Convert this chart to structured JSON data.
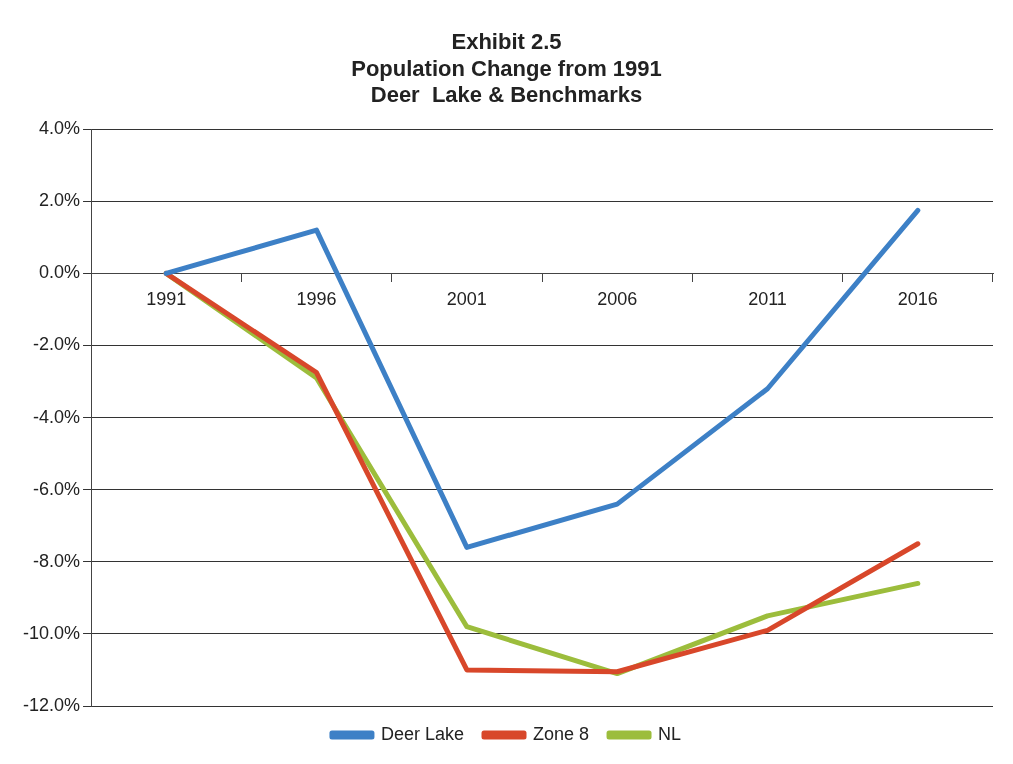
{
  "chart_data": {
    "type": "line",
    "title": "Exhibit 2.5\nPopulation Change from 1991\nDeer  Lake & Benchmarks",
    "categories": [
      "1991",
      "1996",
      "2001",
      "2006",
      "2011",
      "2016"
    ],
    "series": [
      {
        "name": "Deer Lake",
        "color": "#3d80c6",
        "values": [
          0,
          1.2,
          -7.6,
          -6.4,
          -3.2,
          1.75
        ]
      },
      {
        "name": "Zone 8",
        "color": "#d8472a",
        "values": [
          0,
          -2.75,
          -11.0,
          -11.05,
          -9.9,
          -7.5
        ]
      },
      {
        "name": "NL",
        "color": "#9cbd3c",
        "values": [
          0,
          -2.9,
          -9.8,
          -11.1,
          -9.5,
          -8.6
        ]
      }
    ],
    "ylim": [
      -12,
      4
    ],
    "yticks": [
      {
        "value": -12,
        "label": "-12.0%"
      },
      {
        "value": -10,
        "label": "-10.0%"
      },
      {
        "value": -8,
        "label": "-8.0%"
      },
      {
        "value": -6,
        "label": "-6.0%"
      },
      {
        "value": -4,
        "label": "-4.0%"
      },
      {
        "value": -2,
        "label": "-2.0%"
      },
      {
        "value": 0,
        "label": "0.0%"
      },
      {
        "value": 2,
        "label": "2.0%"
      },
      {
        "value": 4,
        "label": "4.0%"
      }
    ],
    "grid": "y",
    "legend": "bottom",
    "marker": "none",
    "line_style": "solid"
  }
}
